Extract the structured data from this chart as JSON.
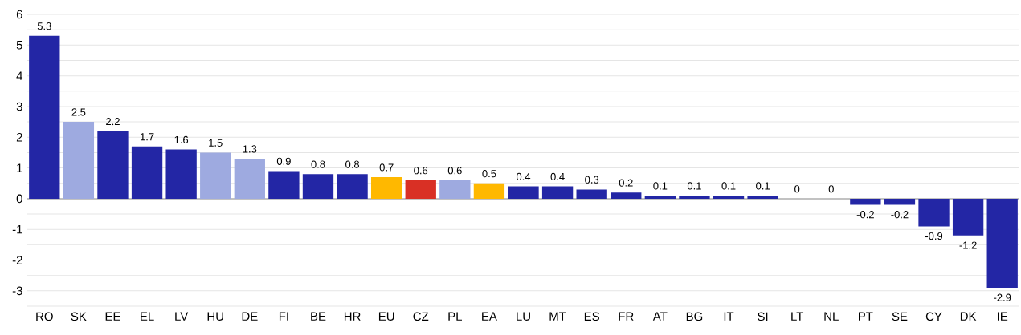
{
  "chart_data": {
    "type": "bar",
    "categories": [
      "RO",
      "SK",
      "EE",
      "EL",
      "LV",
      "HU",
      "DE",
      "FI",
      "BE",
      "HR",
      "EU",
      "CZ",
      "PL",
      "EA",
      "LU",
      "MT",
      "ES",
      "FR",
      "AT",
      "BG",
      "IT",
      "SI",
      "LT",
      "NL",
      "PT",
      "SE",
      "CY",
      "DK",
      "IE"
    ],
    "values": [
      5.3,
      2.5,
      2.2,
      1.7,
      1.6,
      1.5,
      1.3,
      0.9,
      0.8,
      0.8,
      0.7,
      0.6,
      0.6,
      0.5,
      0.4,
      0.4,
      0.3,
      0.2,
      0.1,
      0.1,
      0.1,
      0.1,
      0,
      0,
      -0.2,
      -0.2,
      -0.9,
      -1.2,
      -2.9
    ],
    "colors": [
      "#2326a5",
      "#9eaae0",
      "#2326a5",
      "#2326a5",
      "#2326a5",
      "#9eaae0",
      "#9eaae0",
      "#2326a5",
      "#2326a5",
      "#2326a5",
      "#ffb800",
      "#d93025",
      "#9eaae0",
      "#ffb800",
      "#2326a5",
      "#2326a5",
      "#2326a5",
      "#2326a5",
      "#2326a5",
      "#2326a5",
      "#2326a5",
      "#2326a5",
      "#2326a5",
      "#2326a5",
      "#2326a5",
      "#2326a5",
      "#2326a5",
      "#2326a5",
      "#2326a5"
    ],
    "ylim": [
      -3.5,
      6
    ],
    "yticks": [
      {
        "value": -3.5,
        "label": null
      },
      -3,
      {
        "value": -2.5,
        "label": null
      },
      -2,
      {
        "value": -1.5,
        "label": null
      },
      -1,
      {
        "value": -0.5,
        "label": null
      },
      0,
      {
        "value": 0.5,
        "label": null
      },
      1,
      {
        "value": 1.5,
        "label": null
      },
      2,
      {
        "value": 2.5,
        "label": null
      },
      3,
      {
        "value": 3.5,
        "label": null
      },
      4,
      {
        "value": 4.5,
        "label": null
      },
      5,
      {
        "value": 5.5,
        "label": null
      },
      6
    ],
    "grid": true,
    "data_labels": true
  }
}
